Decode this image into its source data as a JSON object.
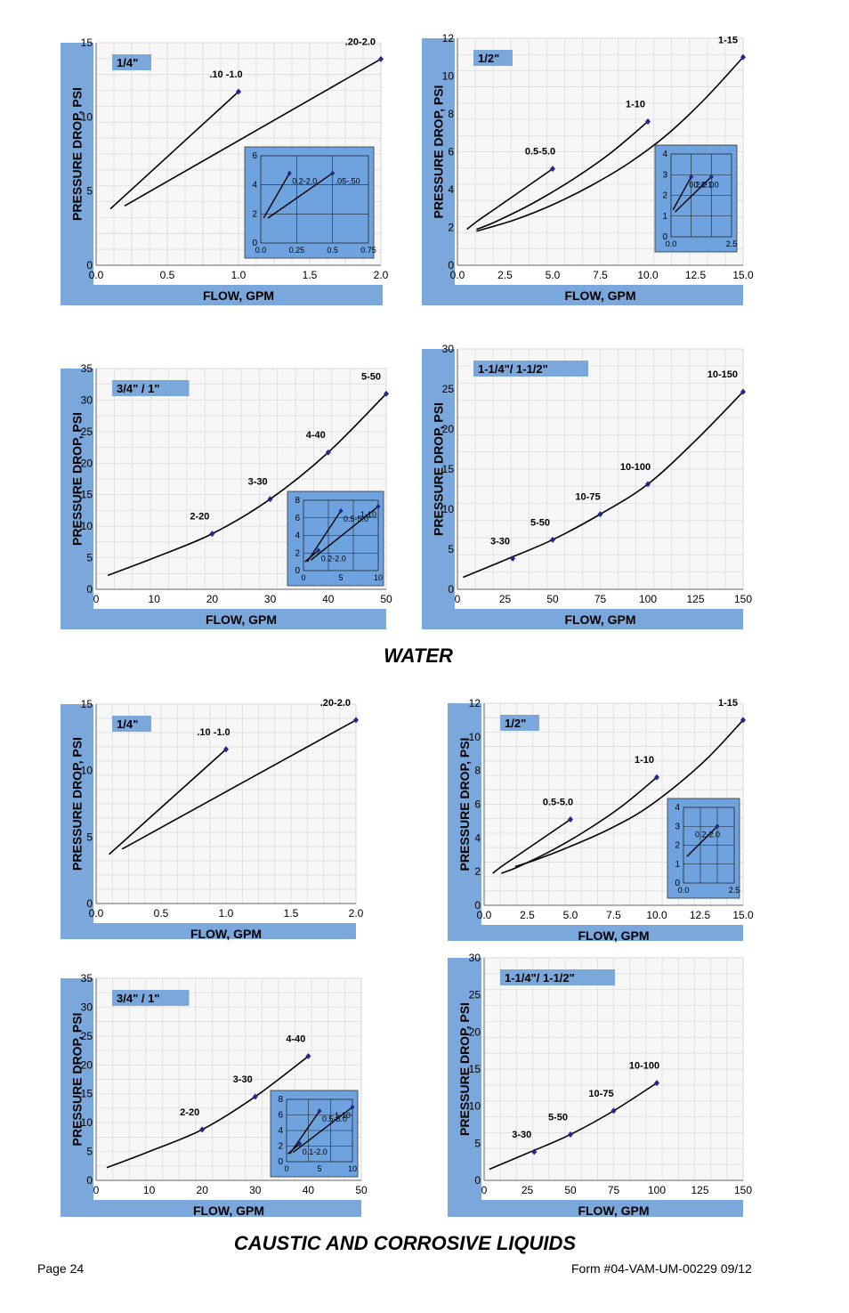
{
  "page": {
    "water_title": "WATER",
    "caustic_title": "CAUSTIC AND CORROSIVE LIQUIDS",
    "page_label": "Page 24",
    "form_label": "Form #04-VAM-UM-00229  09/12"
  },
  "colors": {
    "band": "#7aa7dc",
    "grid": "#d9d9d9",
    "plot_bg": "#f7f7f7",
    "curve": "#000000",
    "marker": "#1f2a8c",
    "inset_bg": "#6fa3e0"
  },
  "chart_data": [
    {
      "id": "water-quarter",
      "type": "line",
      "title": "1/4\"",
      "xlabel": "FLOW, GPM",
      "ylabel": "PRESSURE DROP, PSI",
      "xlim": [
        0,
        2
      ],
      "ylim": [
        0,
        15
      ],
      "xticks": [
        "0.0",
        "0.5",
        "1.0",
        "1.5",
        "2.0"
      ],
      "yticks": [
        "0",
        "5",
        "10",
        "15"
      ],
      "series": [
        {
          "name": ".10 -1.0",
          "x": [
            0.1,
            1.0
          ],
          "y": [
            3.8,
            11.7
          ]
        },
        {
          "name": ".20-2.0",
          "x": [
            0.2,
            2.0
          ],
          "y": [
            4.0,
            13.9
          ]
        }
      ],
      "inset": {
        "xlim": [
          0,
          0.75
        ],
        "ylim": [
          0,
          7
        ],
        "xticks": [
          "0.0",
          "0.25",
          "0.5",
          "0.75"
        ],
        "yticks": [
          "0",
          "2",
          "4",
          "6"
        ],
        "series": [
          {
            "name": "0.2-2.0",
            "x": [
              0.02,
              0.2
            ],
            "y": [
              2.0,
              5.6
            ]
          },
          {
            "name": ".05-.50",
            "x": [
              0.05,
              0.5
            ],
            "y": [
              2.0,
              5.6
            ]
          }
        ]
      }
    },
    {
      "id": "water-half",
      "type": "line",
      "title": "1/2\"",
      "xlabel": "FLOW, GPM",
      "ylabel": "PRESSURE DROP, PSI",
      "xlim": [
        0,
        15
      ],
      "ylim": [
        0,
        12
      ],
      "xticks": [
        "0.0",
        "2.5",
        "5.0",
        "7.5",
        "10.0",
        "12.5",
        "15.0"
      ],
      "yticks": [
        "0",
        "2",
        "4",
        "6",
        "8",
        "10",
        "12"
      ],
      "series": [
        {
          "name": "0.5-5.0",
          "x": [
            0.5,
            1.0,
            2.0,
            3.0,
            4.0,
            5.0
          ],
          "y": [
            1.9,
            2.3,
            3.0,
            3.7,
            4.4,
            5.1
          ]
        },
        {
          "name": "1-10",
          "x": [
            1.0,
            2.0,
            4.0,
            6.0,
            8.0,
            10.0
          ],
          "y": [
            1.9,
            2.3,
            3.3,
            4.5,
            5.9,
            7.6
          ]
        },
        {
          "name": "1-15",
          "x": [
            1.0,
            3.0,
            5.0,
            7.0,
            9.0,
            11.0,
            13.0,
            15.0
          ],
          "y": [
            1.8,
            2.4,
            3.2,
            4.2,
            5.4,
            6.9,
            8.8,
            11.0
          ]
        }
      ],
      "inset": {
        "xlim": [
          0,
          3
        ],
        "ylim": [
          0,
          4
        ],
        "xticks": [
          "0.0",
          "2.5"
        ],
        "yticks": [
          "0",
          "1",
          "2",
          "3",
          "4"
        ],
        "series": [
          {
            "name": "0.1-1.0",
            "x": [
              0.1,
              1.0
            ],
            "y": [
              1.3,
              2.9
            ]
          },
          {
            "name": "0.2-2.0",
            "x": [
              0.2,
              2.0
            ],
            "y": [
              1.2,
              2.9
            ]
          }
        ]
      }
    },
    {
      "id": "water-three-quarter",
      "type": "line",
      "title": "3/4\" / 1\"",
      "xlabel": "FLOW, GPM",
      "ylabel": "PRESSURE DROP, PSI",
      "xlim": [
        0,
        50
      ],
      "ylim": [
        0,
        35
      ],
      "xticks": [
        "0",
        "10",
        "20",
        "30",
        "40",
        "50"
      ],
      "yticks": [
        "0",
        "5",
        "10",
        "15",
        "20",
        "25",
        "30",
        "35"
      ],
      "series": [
        {
          "name": "curve",
          "x": [
            2,
            10,
            20,
            30,
            40,
            50
          ],
          "y": [
            2.2,
            5.0,
            8.8,
            14.3,
            21.7,
            31.0
          ],
          "points": [
            {
              "label": "2-20",
              "x": 20,
              "y": 8.8
            },
            {
              "label": "3-30",
              "x": 30,
              "y": 14.3
            },
            {
              "label": "4-40",
              "x": 40,
              "y": 21.7
            },
            {
              "label": "5-50",
              "x": 50,
              "y": 31.0
            }
          ]
        }
      ],
      "inset": {
        "xlim": [
          0,
          10
        ],
        "ylim": [
          0,
          8
        ],
        "xticks": [
          "0",
          "5",
          "10"
        ],
        "yticks": [
          "0",
          "2",
          "4",
          "6",
          "8"
        ],
        "series": [
          {
            "name": "0.5-5.0",
            "x": [
              0.5,
              5.0
            ],
            "y": [
              1.0,
              6.8
            ]
          },
          {
            "name": "1-10",
            "x": [
              1.0,
              10.0
            ],
            "y": [
              1.2,
              7.3
            ]
          },
          {
            "name": "0.2-2.0",
            "x": [
              0.2,
              2.0
            ],
            "y": [
              1.0,
              2.3
            ]
          }
        ]
      }
    },
    {
      "id": "water-one-quarter",
      "type": "line",
      "title": "1-1/4\"/ 1-1/2\"",
      "xlabel": "FLOW, GPM",
      "ylabel": "PRESSURE DROP, PSI",
      "xlim": [
        0,
        150
      ],
      "ylim": [
        0,
        32
      ],
      "xticks": [
        "0",
        "25",
        "50",
        "75",
        "100",
        "125",
        "150"
      ],
      "yticks": [
        "0",
        "5",
        "10",
        "15",
        "20",
        "25",
        "30"
      ],
      "series": [
        {
          "name": "curve",
          "x": [
            3,
            25,
            50,
            75,
            100,
            125,
            150
          ],
          "y": [
            1.6,
            3.9,
            6.6,
            10.0,
            14.0,
            19.8,
            26.3
          ],
          "points": [
            {
              "label": "3-30",
              "x": 29,
              "y": 4.1
            },
            {
              "label": "5-50",
              "x": 50,
              "y": 6.6
            },
            {
              "label": "10-75",
              "x": 75,
              "y": 10.0
            },
            {
              "label": "10-100",
              "x": 100,
              "y": 14.0
            },
            {
              "label": "10-150",
              "x": 150,
              "y": 26.3
            }
          ]
        }
      ]
    },
    {
      "id": "caustic-quarter",
      "type": "line",
      "title": "1/4\"",
      "xlabel": "FLOW, GPM",
      "ylabel": "PRESSURE DROP, PSI",
      "xlim": [
        0,
        2
      ],
      "ylim": [
        0,
        15
      ],
      "xticks": [
        "0.0",
        "0.5",
        "1.0",
        "1.5",
        "2.0"
      ],
      "yticks": [
        "0",
        "5",
        "10",
        "15"
      ],
      "series": [
        {
          "name": ".10 -1.0",
          "x": [
            0.1,
            1.0
          ],
          "y": [
            3.7,
            11.6
          ]
        },
        {
          "name": ".20-2.0",
          "x": [
            0.2,
            2.0
          ],
          "y": [
            4.1,
            13.8
          ]
        }
      ]
    },
    {
      "id": "caustic-half",
      "type": "line",
      "title": "1/2\"",
      "xlabel": "FLOW, GPM",
      "ylabel": "PRESSURE DROP, PSI",
      "xlim": [
        0,
        15
      ],
      "ylim": [
        0,
        12
      ],
      "xticks": [
        "0.0",
        "2.5",
        "5.0",
        "7.5",
        "10.0",
        "12.5",
        "15.0"
      ],
      "yticks": [
        "0",
        "2",
        "4",
        "6",
        "8",
        "10",
        "12"
      ],
      "series": [
        {
          "name": "0.5-5.0",
          "x": [
            0.5,
            1.0,
            2.0,
            3.0,
            4.0,
            5.0
          ],
          "y": [
            1.9,
            2.3,
            3.0,
            3.7,
            4.4,
            5.1
          ]
        },
        {
          "name": "1-10",
          "x": [
            1.0,
            2.0,
            4.0,
            6.0,
            8.0,
            10.0
          ],
          "y": [
            1.9,
            2.3,
            3.3,
            4.5,
            5.9,
            7.6
          ]
        },
        {
          "name": "1-15",
          "x": [
            1.8,
            3.0,
            5.0,
            7.0,
            9.0,
            11.0,
            13.0,
            15.0
          ],
          "y": [
            2.3,
            2.7,
            3.5,
            4.4,
            5.5,
            7.0,
            8.8,
            11.0
          ]
        }
      ],
      "inset": {
        "xlim": [
          0,
          3
        ],
        "ylim": [
          0,
          4
        ],
        "xticks": [
          "0.0",
          "2.5"
        ],
        "yticks": [
          "0",
          "1",
          "2",
          "3",
          "4"
        ],
        "series": [
          {
            "name": "0.2-2.0",
            "x": [
              0.2,
              2.0
            ],
            "y": [
              1.4,
              3.0
            ]
          }
        ]
      }
    },
    {
      "id": "caustic-three-quarter",
      "type": "line",
      "title": "3/4\" / 1\"",
      "xlabel": "FLOW, GPM",
      "ylabel": "PRESSURE DROP, PSI",
      "xlim": [
        0,
        50
      ],
      "ylim": [
        0,
        35
      ],
      "xticks": [
        "0",
        "10",
        "20",
        "30",
        "40",
        "50"
      ],
      "yticks": [
        "0",
        "5",
        "10",
        "15",
        "20",
        "25",
        "30",
        "35"
      ],
      "series": [
        {
          "name": "curve",
          "x": [
            2,
            10,
            20,
            30,
            40
          ],
          "y": [
            2.2,
            5.0,
            8.8,
            14.5,
            21.5
          ],
          "points": [
            {
              "label": "2-20",
              "x": 20,
              "y": 8.8
            },
            {
              "label": "3-30",
              "x": 30,
              "y": 14.5
            },
            {
              "label": "4-40",
              "x": 40,
              "y": 21.5
            }
          ]
        }
      ],
      "inset": {
        "xlim": [
          0,
          10
        ],
        "ylim": [
          0,
          8
        ],
        "xticks": [
          "0",
          "5",
          "10"
        ],
        "yticks": [
          "0",
          "2",
          "4",
          "6",
          "8"
        ],
        "series": [
          {
            "name": "0.5-5.0",
            "x": [
              0.5,
              5.0
            ],
            "y": [
              1.0,
              6.5
            ]
          },
          {
            "name": "1-10",
            "x": [
              1.0,
              10.0
            ],
            "y": [
              1.2,
              7.0
            ]
          },
          {
            "name": "0.1-2.0",
            "x": [
              0.2,
              2.0
            ],
            "y": [
              1.0,
              2.3
            ]
          }
        ]
      }
    },
    {
      "id": "caustic-one-quarter",
      "type": "line",
      "title": "1-1/4\"/ 1-1/2\"",
      "xlabel": "FLOW, GPM",
      "ylabel": "PRESSURE DROP, PSI",
      "xlim": [
        0,
        150
      ],
      "ylim": [
        0,
        32
      ],
      "xticks": [
        "0",
        "25",
        "50",
        "75",
        "100",
        "125",
        "150"
      ],
      "yticks": [
        "0",
        "5",
        "10",
        "15",
        "20",
        "25",
        "30"
      ],
      "series": [
        {
          "name": "curve",
          "x": [
            3,
            25,
            50,
            75,
            100
          ],
          "y": [
            1.6,
            3.9,
            6.6,
            10.0,
            14.0
          ],
          "points": [
            {
              "label": "3-30",
              "x": 29,
              "y": 4.1
            },
            {
              "label": "5-50",
              "x": 50,
              "y": 6.6
            },
            {
              "label": "10-75",
              "x": 75,
              "y": 10.0
            },
            {
              "label": "10-100",
              "x": 100,
              "y": 14.0
            }
          ]
        }
      ]
    }
  ]
}
